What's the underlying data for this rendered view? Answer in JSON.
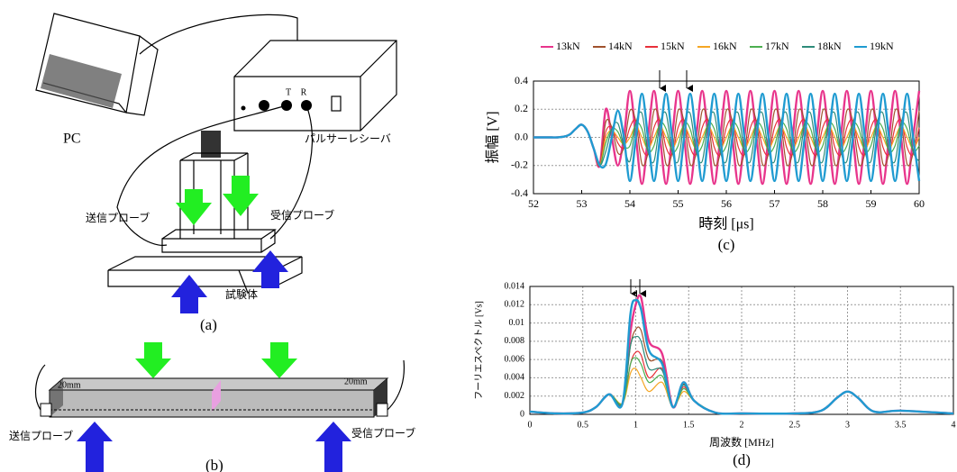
{
  "figure_a": {
    "pc": "PC",
    "pulser_receiver": "パルサーレシーバ",
    "t": "T",
    "r": "R",
    "transmit_probe": "送信プローブ",
    "receive_probe": "受信プローブ",
    "specimen": "試験体",
    "caption": "(a)"
  },
  "figure_b": {
    "left_depth": "20mm",
    "right_depth": "20mm",
    "transmit_probe": "送信プローブ",
    "receive_probe": "受信プローブ",
    "caption": "(b)"
  },
  "chart_data": [
    {
      "type": "line",
      "caption": "(c)",
      "y_label": "振幅 [V]",
      "x_label": "時刻 [μs]",
      "xlim": [
        52,
        60
      ],
      "xticks": [
        52,
        53,
        54,
        55,
        56,
        57,
        58,
        59,
        60
      ],
      "ylim": [
        -0.4,
        0.4
      ],
      "yticks": [
        -0.4,
        -0.2,
        {
          "value": 0,
          "label": "0.0"
        },
        0.2,
        0.4
      ],
      "grid": true,
      "x": [
        52,
        52.125,
        52.25,
        52.375,
        52.5,
        52.625,
        52.75,
        52.875,
        53,
        53.125,
        53.25,
        53.375,
        53.5,
        53.625,
        53.75,
        53.875,
        54,
        54.125,
        54.25,
        54.375,
        54.5,
        54.625,
        54.75,
        54.875,
        55,
        55.125,
        55.25,
        55.375,
        55.5,
        55.625,
        55.75,
        55.875,
        56,
        56.125,
        56.25,
        56.375,
        56.5,
        56.625,
        56.75,
        56.875,
        57,
        57.125,
        57.25,
        57.375,
        57.5,
        57.625,
        57.75,
        57.875,
        58,
        58.125,
        58.25,
        58.375,
        58.5,
        58.625,
        58.75,
        58.875,
        59,
        59.125,
        59.25,
        59.375,
        59.5,
        59.625,
        59.75,
        59.875,
        60
      ],
      "series": [
        {
          "name": "13kN",
          "color": "#e8358c",
          "values": [
            0,
            0,
            0,
            0,
            0,
            0.005,
            0.02,
            0.06,
            0.09,
            0.04,
            -0.08,
            -0.2,
            0.2,
            0,
            -0.2,
            0,
            0.33,
            0,
            -0.33,
            0,
            0.33,
            0,
            -0.33,
            0,
            0.33,
            0,
            -0.33,
            0,
            0.33,
            0,
            -0.33,
            0,
            0.33,
            0,
            -0.33,
            0,
            0.33,
            0,
            -0.33,
            0,
            0.33,
            0,
            -0.33,
            0,
            0.33,
            0,
            -0.33,
            0,
            0.33,
            0,
            -0.33,
            0,
            0.33,
            0,
            -0.33,
            0,
            0.33,
            0,
            -0.33,
            0,
            0.33,
            0,
            -0.33,
            0,
            0.33
          ]
        },
        {
          "name": "14kN",
          "color": "#a0522d",
          "values": [
            0,
            0,
            0,
            0,
            0,
            0.005,
            0.02,
            0.06,
            0.09,
            0.04,
            -0.08,
            -0.2,
            0.11,
            0.07,
            -0.11,
            -0.07,
            0.19,
            0.11,
            -0.19,
            -0.11,
            0.19,
            0.11,
            -0.19,
            -0.11,
            0.19,
            0.11,
            -0.19,
            -0.11,
            0.19,
            0.11,
            -0.19,
            -0.11,
            0.19,
            0.11,
            -0.19,
            -0.11,
            0.19,
            0.11,
            -0.19,
            -0.11,
            0.19,
            0.11,
            -0.19,
            -0.11,
            0.19,
            0.11,
            -0.19,
            -0.11,
            0.19,
            0.11,
            -0.19,
            -0.11,
            0.19,
            0.11,
            -0.19,
            -0.11,
            0.19,
            0.11,
            -0.19,
            -0.11,
            0.19,
            0.11,
            -0.19,
            -0.11,
            0.19
          ]
        },
        {
          "name": "15kN",
          "color": "#e8303a",
          "values": [
            0,
            0,
            0,
            0,
            0,
            0.005,
            0.02,
            0.06,
            0.09,
            0.04,
            -0.08,
            -0.2,
            0.04,
            0.07,
            -0.04,
            -0.07,
            0.07,
            0.12,
            -0.07,
            -0.12,
            0.07,
            0.12,
            -0.07,
            -0.12,
            0.07,
            0.12,
            -0.07,
            -0.12,
            0.07,
            0.12,
            -0.07,
            -0.12,
            0.07,
            0.12,
            -0.07,
            -0.12,
            0.07,
            0.12,
            -0.07,
            -0.12,
            0.07,
            0.12,
            -0.07,
            -0.12,
            0.07,
            0.12,
            -0.07,
            -0.12,
            0.07,
            0.12,
            -0.07,
            -0.12,
            0.07,
            0.12,
            -0.07,
            -0.12,
            0.07,
            0.12,
            -0.07,
            -0.12,
            0.07,
            0.12,
            -0.07,
            -0.12,
            0.07
          ]
        },
        {
          "name": "16kN",
          "color": "#f5a623",
          "values": [
            0,
            0,
            0,
            0,
            0,
            0.005,
            0.02,
            0.06,
            0.09,
            0.04,
            -0.08,
            -0.2,
            0,
            0.05,
            0,
            -0.05,
            0,
            0.08,
            0,
            -0.08,
            0,
            0.08,
            0,
            -0.08,
            0,
            0.08,
            0,
            -0.08,
            0,
            0.08,
            0,
            -0.08,
            0,
            0.08,
            0,
            -0.08,
            0,
            0.08,
            0,
            -0.08,
            0,
            0.08,
            0,
            -0.08,
            0,
            0.08,
            0,
            -0.08,
            0,
            0.08,
            0,
            -0.08,
            0,
            0.08,
            0,
            -0.08,
            0,
            0.08,
            0,
            -0.08,
            0,
            0.08,
            0,
            -0.08,
            0
          ]
        },
        {
          "name": "17kN",
          "color": "#4caf50",
          "values": [
            0,
            0,
            0,
            0,
            0,
            0.005,
            0.02,
            0.06,
            0.09,
            0.04,
            -0.08,
            -0.2,
            -0.04,
            0.06,
            0.04,
            -0.06,
            -0.06,
            0.1,
            0.06,
            -0.1,
            -0.06,
            0.1,
            0.06,
            -0.1,
            -0.06,
            0.1,
            0.06,
            -0.1,
            -0.06,
            0.1,
            0.06,
            -0.1,
            -0.06,
            0.1,
            0.06,
            -0.1,
            -0.06,
            0.1,
            0.06,
            -0.1,
            -0.06,
            0.1,
            0.06,
            -0.1,
            -0.06,
            0.1,
            0.06,
            -0.1,
            -0.06,
            0.1,
            0.06,
            -0.1,
            -0.06,
            0.1,
            0.06,
            -0.1,
            -0.06,
            0.1,
            0.06,
            -0.1,
            -0.06,
            0.1,
            0.06,
            -0.1,
            -0.06
          ]
        },
        {
          "name": "18kN",
          "color": "#2e8b7a",
          "values": [
            0,
            0,
            0,
            0,
            0,
            0.005,
            0.02,
            0.06,
            0.09,
            0.04,
            -0.08,
            -0.2,
            -0.1,
            0.06,
            0.1,
            -0.06,
            -0.17,
            0.1,
            0.17,
            -0.1,
            -0.17,
            0.1,
            0.17,
            -0.1,
            -0.17,
            0.1,
            0.17,
            -0.1,
            -0.17,
            0.1,
            0.17,
            -0.1,
            -0.17,
            0.1,
            0.17,
            -0.1,
            -0.17,
            0.1,
            0.17,
            -0.1,
            -0.17,
            0.1,
            0.17,
            -0.1,
            -0.17,
            0.1,
            0.17,
            -0.1,
            -0.17,
            0.1,
            0.17,
            -0.1,
            -0.17,
            0.1,
            0.17,
            -0.1,
            -0.17,
            0.1,
            0.17,
            -0.1,
            -0.17,
            0.1,
            0.17,
            -0.1,
            -0.17
          ]
        },
        {
          "name": "19kN",
          "color": "#1f9bd1",
          "values": [
            0,
            0,
            0,
            0,
            0,
            0.005,
            0.02,
            0.06,
            0.09,
            0.04,
            -0.08,
            -0.2,
            -0.19,
            0,
            0.19,
            0,
            -0.31,
            0,
            0.31,
            0,
            -0.31,
            0,
            0.31,
            0,
            -0.31,
            0,
            0.31,
            0,
            -0.31,
            0,
            0.31,
            0,
            -0.31,
            0,
            0.31,
            0,
            -0.31,
            0,
            0.31,
            0,
            -0.31,
            0,
            0.31,
            0,
            -0.31,
            0,
            0.31,
            0,
            -0.31,
            0,
            0.31,
            0,
            -0.31,
            0,
            0.31,
            0,
            -0.31,
            0,
            0.31,
            0,
            -0.31,
            0,
            0.31,
            0,
            -0.31
          ]
        }
      ]
    },
    {
      "type": "line",
      "caption": "(d)",
      "y_label": "フーリエスペクトル [Vs]",
      "x_label": "周波数 [MHz]",
      "xlim": [
        0,
        4
      ],
      "xticks": [
        0,
        0.5,
        1,
        1.5,
        2,
        2.5,
        3,
        3.5,
        4
      ],
      "ylim": [
        0,
        0.014
      ],
      "yticks": [
        0,
        0.002,
        0.004,
        0.006,
        0.008,
        0.01,
        0.012,
        0.014
      ],
      "grid": true,
      "x": [
        0,
        0.25,
        0.5,
        0.625,
        0.75,
        0.875,
        0.95,
        1,
        1.05,
        1.125,
        1.25,
        1.35,
        1.45,
        1.55,
        1.75,
        2,
        2.5,
        2.75,
        2.9,
        3,
        3.1,
        3.25,
        3.5,
        4
      ],
      "series": [
        {
          "color": "#e8358c",
          "values": [
            0.0003,
            0.0001,
            0.0002,
            0.0008,
            0.0022,
            0.0012,
            0.009,
            0.012,
            0.0128,
            0.008,
            0.0066,
            0.0008,
            0.0035,
            0.0015,
            0.0002,
            0.0001,
            0.0001,
            0.0004,
            0.0018,
            0.0025,
            0.0018,
            0.0003,
            0.0004,
            0.0001
          ]
        },
        {
          "color": "#a0522d",
          "values": [
            0.0003,
            0.0001,
            0.0002,
            0.0008,
            0.0022,
            0.0012,
            0.0075,
            0.0093,
            0.0092,
            0.006,
            0.0058,
            0.0008,
            0.0033,
            0.0015,
            0.0002,
            0.0001,
            0.0001,
            0.0004,
            0.0018,
            0.0025,
            0.0018,
            0.0003,
            0.0004,
            0.0001
          ]
        },
        {
          "color": "#e8303a",
          "values": [
            0.0003,
            0.0001,
            0.0002,
            0.0008,
            0.0022,
            0.0012,
            0.0055,
            0.0068,
            0.0065,
            0.004,
            0.005,
            0.0008,
            0.003,
            0.0015,
            0.0002,
            0.0001,
            0.0001,
            0.0004,
            0.0018,
            0.0025,
            0.0018,
            0.0003,
            0.0004,
            0.0001
          ]
        },
        {
          "color": "#f5a623",
          "values": [
            0.0003,
            0.0001,
            0.0002,
            0.0008,
            0.0022,
            0.0012,
            0.0045,
            0.005,
            0.004,
            0.0025,
            0.0035,
            0.0008,
            0.0025,
            0.0015,
            0.0002,
            0.0001,
            0.0001,
            0.0004,
            0.0018,
            0.0025,
            0.0018,
            0.0003,
            0.0004,
            0.0001
          ]
        },
        {
          "color": "#4caf50",
          "values": [
            0.0003,
            0.0001,
            0.0002,
            0.0008,
            0.0022,
            0.0012,
            0.0055,
            0.0062,
            0.0055,
            0.0035,
            0.0042,
            0.0008,
            0.0028,
            0.0015,
            0.0002,
            0.0001,
            0.0001,
            0.0004,
            0.0018,
            0.0025,
            0.0018,
            0.0003,
            0.0004,
            0.0001
          ]
        },
        {
          "color": "#2e8b7a",
          "values": [
            0.0003,
            0.0001,
            0.0002,
            0.0008,
            0.0022,
            0.0012,
            0.0075,
            0.0085,
            0.008,
            0.005,
            0.0048,
            0.0008,
            0.0032,
            0.0015,
            0.0002,
            0.0001,
            0.0001,
            0.0004,
            0.0018,
            0.0025,
            0.0018,
            0.0003,
            0.0004,
            0.0001
          ]
        },
        {
          "color": "#1f9bd1",
          "values": [
            0.0003,
            0.0001,
            0.0002,
            0.0008,
            0.0022,
            0.0012,
            0.011,
            0.0125,
            0.0115,
            0.007,
            0.0055,
            0.0008,
            0.0035,
            0.0015,
            0.0002,
            0.0001,
            0.0001,
            0.0004,
            0.0018,
            0.0025,
            0.0018,
            0.0003,
            0.0004,
            0.0001
          ]
        }
      ]
    }
  ]
}
